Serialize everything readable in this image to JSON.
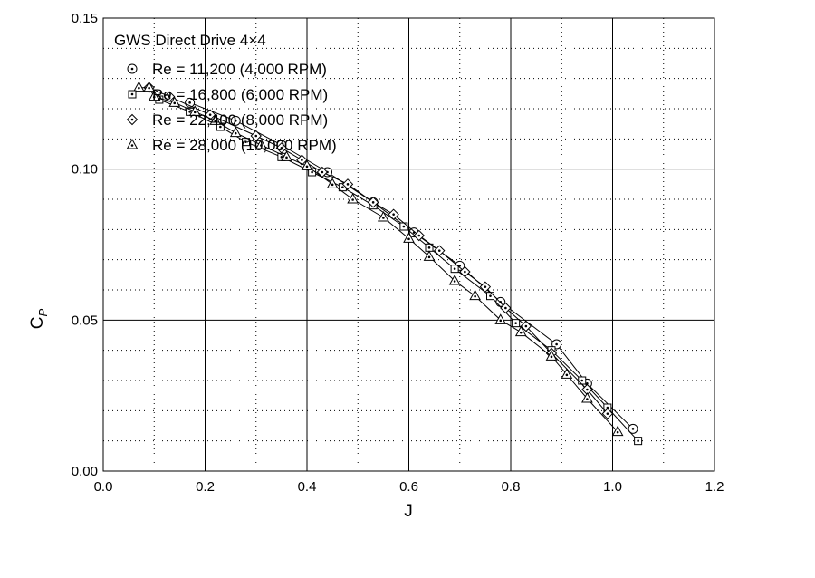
{
  "chart_data": {
    "type": "scatter",
    "title": "GWS Direct Drive 4×4",
    "xlabel": "J",
    "ylabel": "C",
    "ylabel_sub": "P",
    "xlim": [
      0.0,
      1.2
    ],
    "ylim": [
      0.0,
      0.15
    ],
    "x_ticks": [
      "0.0",
      "0.2",
      "0.4",
      "0.6",
      "0.8",
      "1.0",
      "1.2"
    ],
    "y_ticks": [
      "0.00",
      "0.05",
      "0.10",
      "0.15"
    ],
    "grid": true,
    "minor_grid": "dotted",
    "legend_position": "top-left",
    "series": [
      {
        "name": "Re = 11,200 (4,000 RPM)",
        "marker": "circle-dot",
        "x": [
          0.17,
          0.26,
          0.35,
          0.44,
          0.53,
          0.61,
          0.7,
          0.78,
          0.89,
          0.95,
          1.04
        ],
        "y": [
          0.122,
          0.116,
          0.108,
          0.099,
          0.089,
          0.079,
          0.068,
          0.056,
          0.042,
          0.029,
          0.014
        ]
      },
      {
        "name": "Re = 16,800 (6,000 RPM)",
        "marker": "square-dot",
        "x": [
          0.11,
          0.17,
          0.23,
          0.28,
          0.35,
          0.41,
          0.47,
          0.53,
          0.59,
          0.64,
          0.69,
          0.76,
          0.81,
          0.88,
          0.94,
          0.99,
          1.05
        ],
        "y": [
          0.123,
          0.119,
          0.114,
          0.109,
          0.104,
          0.099,
          0.094,
          0.088,
          0.081,
          0.074,
          0.067,
          0.058,
          0.049,
          0.04,
          0.03,
          0.021,
          0.01
        ]
      },
      {
        "name": "Re = 22,400 (8,000 RPM)",
        "marker": "diamond-dot",
        "x": [
          0.09,
          0.13,
          0.21,
          0.3,
          0.35,
          0.39,
          0.43,
          0.48,
          0.53,
          0.57,
          0.62,
          0.66,
          0.71,
          0.75,
          0.79,
          0.83,
          0.88,
          0.95,
          0.99
        ],
        "y": [
          0.127,
          0.124,
          0.118,
          0.111,
          0.107,
          0.103,
          0.099,
          0.095,
          0.089,
          0.085,
          0.078,
          0.073,
          0.066,
          0.061,
          0.054,
          0.048,
          0.039,
          0.027,
          0.019
        ]
      },
      {
        "name": "Re = 28,000 (10,000 RPM)",
        "marker": "triangle-dot",
        "x": [
          0.07,
          0.09,
          0.1,
          0.14,
          0.18,
          0.22,
          0.26,
          0.31,
          0.36,
          0.4,
          0.45,
          0.49,
          0.55,
          0.6,
          0.64,
          0.69,
          0.73,
          0.78,
          0.82,
          0.88,
          0.91,
          0.95,
          1.01
        ],
        "y": [
          0.127,
          0.127,
          0.124,
          0.122,
          0.119,
          0.116,
          0.112,
          0.108,
          0.104,
          0.101,
          0.095,
          0.09,
          0.084,
          0.077,
          0.071,
          0.063,
          0.058,
          0.05,
          0.046,
          0.038,
          0.032,
          0.024,
          0.013
        ]
      }
    ]
  }
}
